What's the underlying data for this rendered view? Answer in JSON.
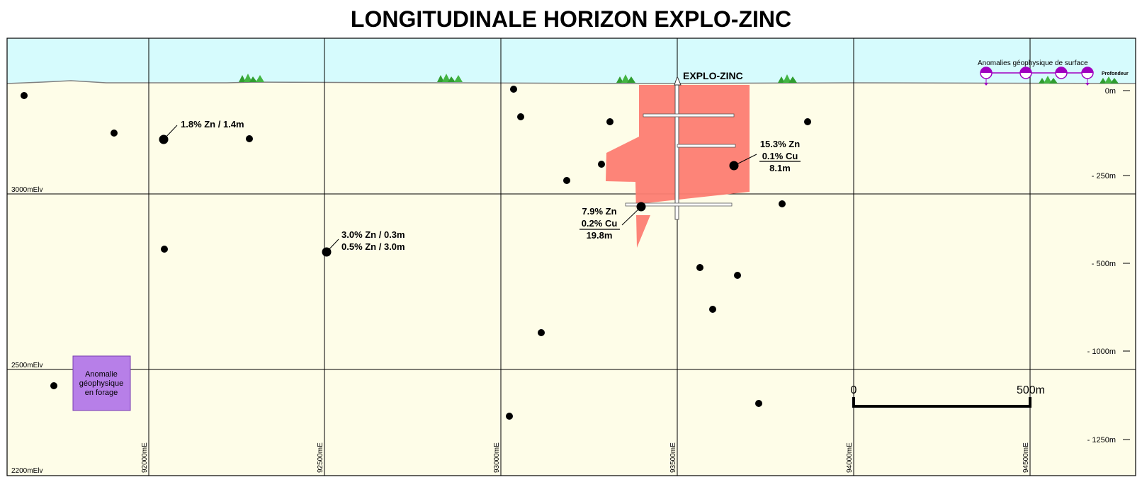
{
  "title": "LONGITUDINALE HORIZON EXPLO-ZINC",
  "colors": {
    "sky": "#d6fbfd",
    "ground": "#fefde8",
    "deposit": "#fd7d72",
    "anomaly_box": "#b77fe8",
    "anomaly_symbol": "#a000c0",
    "drill_hole": "#000000"
  },
  "deposit_label": "EXPLO-ZINC",
  "elevation_labels": {
    "e3000": "3000mElv",
    "e2500": "2500mElv",
    "e2200": "2200mElv"
  },
  "easting_labels": [
    "92000mE",
    "92500mE",
    "93000mE",
    "93500mE",
    "94000mE",
    "94500mE"
  ],
  "depth_labels": {
    "header": "Profondeur",
    "d0": "0m",
    "d250": "- 250m",
    "d500": "- 500m",
    "d1000": "- 1000m",
    "d1250": "- 1250m"
  },
  "surface_anomalies_label": "Anomalies géophysique de surface",
  "borehole_anomaly": {
    "line1": "Anomalie",
    "line2": "géophysique",
    "line3": "en forage"
  },
  "intercepts": {
    "a": {
      "text": "1.8% Zn / 1.4m"
    },
    "b": {
      "line1": "3.0% Zn / 0.3m",
      "line2": "0.5% Zn / 3.0m"
    },
    "c": {
      "line1": "15.3% Zn",
      "line2": "0.1% Cu",
      "line3": "8.1m"
    },
    "d": {
      "line1": "7.9% Zn",
      "line2": "0.2% Cu",
      "line3": "19.8m"
    }
  },
  "scale_bar": {
    "start": "0",
    "end": "500m"
  },
  "icons": [
    "tree-icon",
    "headframe-icon",
    "anomaly-symbol-icon",
    "drill-hole-dot-icon"
  ]
}
